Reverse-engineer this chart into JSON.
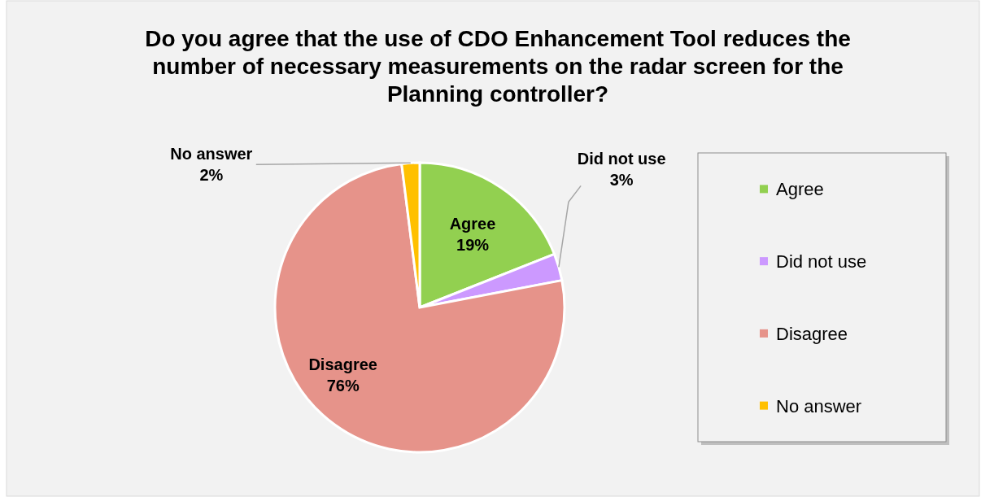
{
  "chart_data": {
    "type": "pie",
    "title": "Do you agree that the use of CDO Enhancement Tool reduces the number of necessary measurements on the radar screen for the Planning controller?",
    "categories": [
      "Agree",
      "Did not use",
      "Disagree",
      "No answer"
    ],
    "values": [
      19,
      3,
      76,
      2
    ],
    "colors": [
      "#92d050",
      "#cc99ff",
      "#e6938a",
      "#ffc000"
    ],
    "value_labels": [
      "19%",
      "3%",
      "76%",
      "2%"
    ],
    "legend": "right"
  }
}
